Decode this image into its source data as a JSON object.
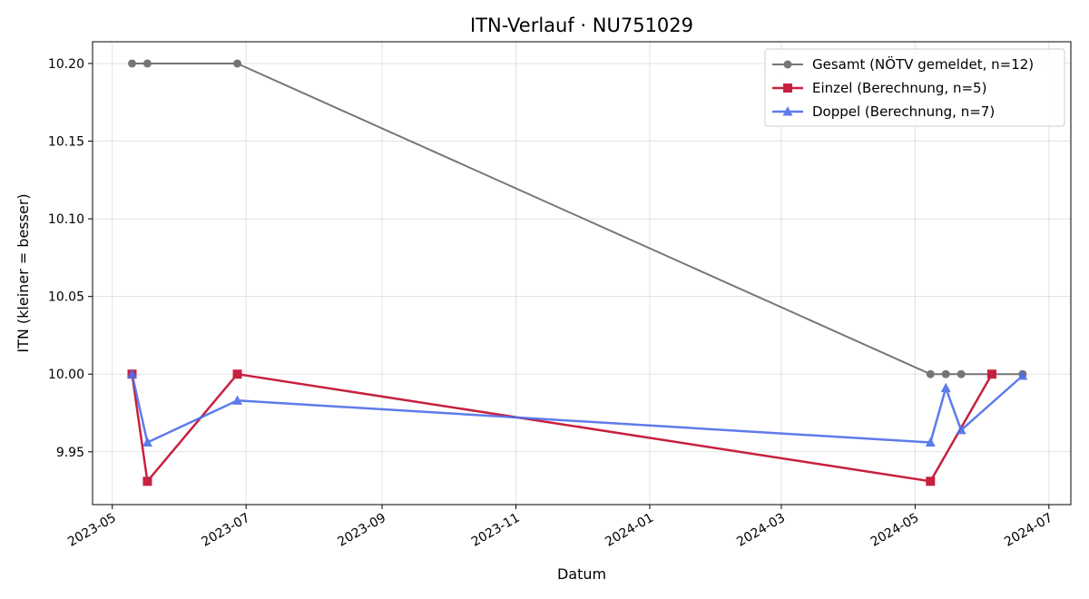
{
  "chart_data": {
    "type": "line",
    "title": "ITN-Verlauf · NU751029",
    "xlabel": "Datum",
    "ylabel": "ITN  (kleiner = besser)",
    "x_axis_type": "date",
    "xlim": [
      "2023-04-22",
      "2024-07-11"
    ],
    "ylim": [
      9.916,
      10.214
    ],
    "x_ticks": [
      "2023-05-01",
      "2023-07-01",
      "2023-09-01",
      "2023-11-01",
      "2024-01-01",
      "2024-03-01",
      "2024-05-01",
      "2024-07-01"
    ],
    "x_tick_labels": [
      "2023-05",
      "2023-07",
      "2023-09",
      "2023-11",
      "2024-01",
      "2024-03",
      "2024-05",
      "2024-07"
    ],
    "y_ticks": [
      9.95,
      10.0,
      10.05,
      10.1,
      10.15,
      10.2
    ],
    "y_tick_labels": [
      "9.95",
      "10.00",
      "10.05",
      "10.10",
      "10.15",
      "10.20"
    ],
    "grid": true,
    "legend_position": "top-right",
    "series": [
      {
        "name": "Gesamt (NÖTV gemeldet, n=12)",
        "color": "#555555",
        "marker": "circle",
        "points": [
          {
            "x": "2023-05-10",
            "y": 10.2
          },
          {
            "x": "2023-05-17",
            "y": 10.2
          },
          {
            "x": "2023-06-27",
            "y": 10.2
          },
          {
            "x": "2024-05-08",
            "y": 10.0
          },
          {
            "x": "2024-05-15",
            "y": 10.0
          },
          {
            "x": "2024-05-22",
            "y": 10.0
          },
          {
            "x": "2024-06-19",
            "y": 10.0
          }
        ]
      },
      {
        "name": "Einzel (Berechnung, n=5)",
        "color": "#c8203f",
        "marker": "square",
        "points": [
          {
            "x": "2023-05-10",
            "y": 10.0
          },
          {
            "x": "2023-05-17",
            "y": 9.931
          },
          {
            "x": "2023-06-27",
            "y": 10.0
          },
          {
            "x": "2024-05-08",
            "y": 9.931
          },
          {
            "x": "2024-06-05",
            "y": 10.0
          }
        ]
      },
      {
        "name": "Doppel (Berechnung, n=7)",
        "color": "#4c6ee8",
        "marker": "triangle",
        "points": [
          {
            "x": "2023-05-10",
            "y": 10.0
          },
          {
            "x": "2023-05-17",
            "y": 9.956
          },
          {
            "x": "2023-06-27",
            "y": 9.983
          },
          {
            "x": "2024-05-08",
            "y": 9.956
          },
          {
            "x": "2024-05-15",
            "y": 9.991
          },
          {
            "x": "2024-05-22",
            "y": 9.964
          },
          {
            "x": "2024-06-19",
            "y": 9.999
          }
        ]
      }
    ]
  }
}
